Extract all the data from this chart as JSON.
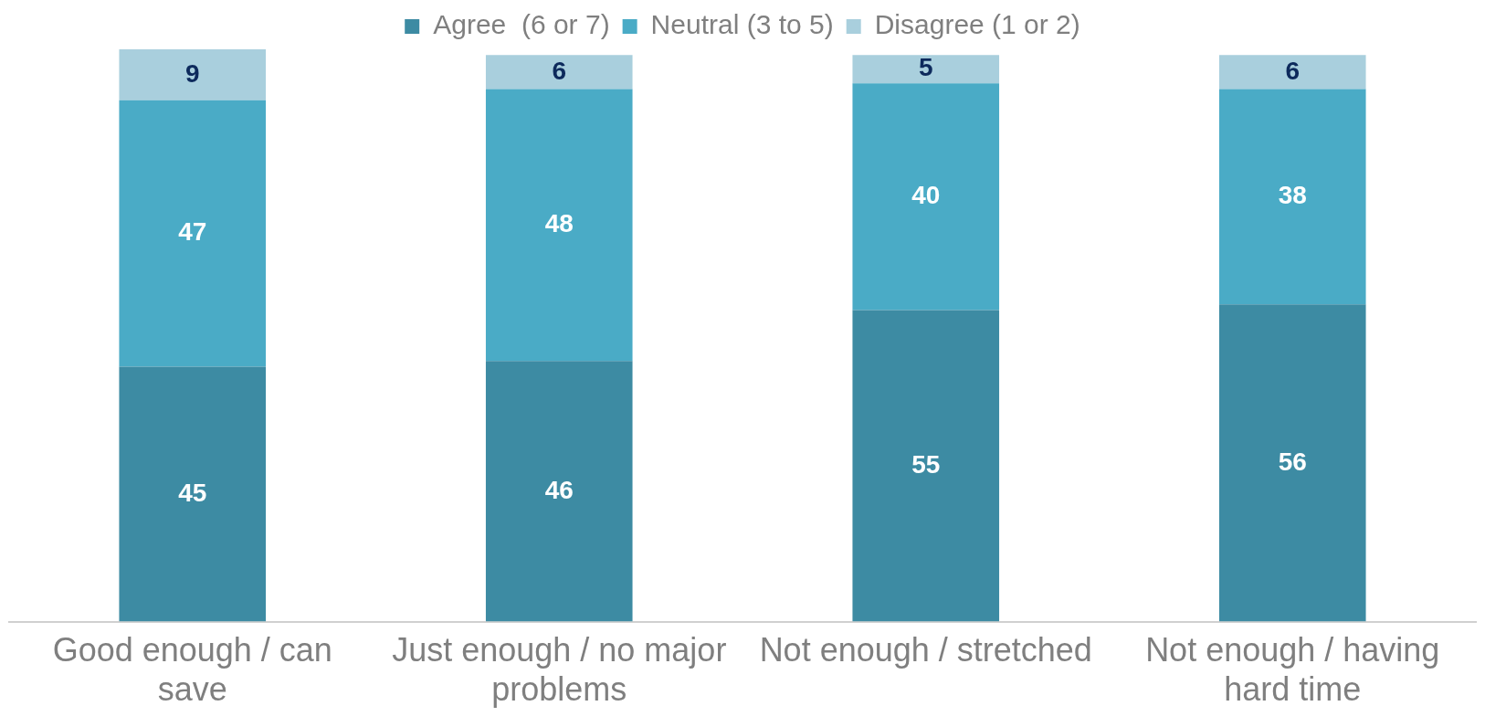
{
  "chart_data": {
    "type": "bar",
    "stacked": true,
    "legend": "top",
    "data_labels": true,
    "categories": [
      "Good enough / can save",
      "Just enough / no major problems",
      "Not enough / stretched",
      "Not enough / having hard time"
    ],
    "series": [
      {
        "name": "Agree  (6 or 7)",
        "color": "#3d8ba3",
        "values": [
          45,
          46,
          55,
          56
        ]
      },
      {
        "name": "Neutral (3 to 5)",
        "color": "#4aabc6",
        "values": [
          47,
          48,
          40,
          38
        ]
      },
      {
        "name": "Disagree (1 or 2)",
        "color": "#a9cfdd",
        "values": [
          9,
          6,
          5,
          6
        ]
      }
    ]
  }
}
